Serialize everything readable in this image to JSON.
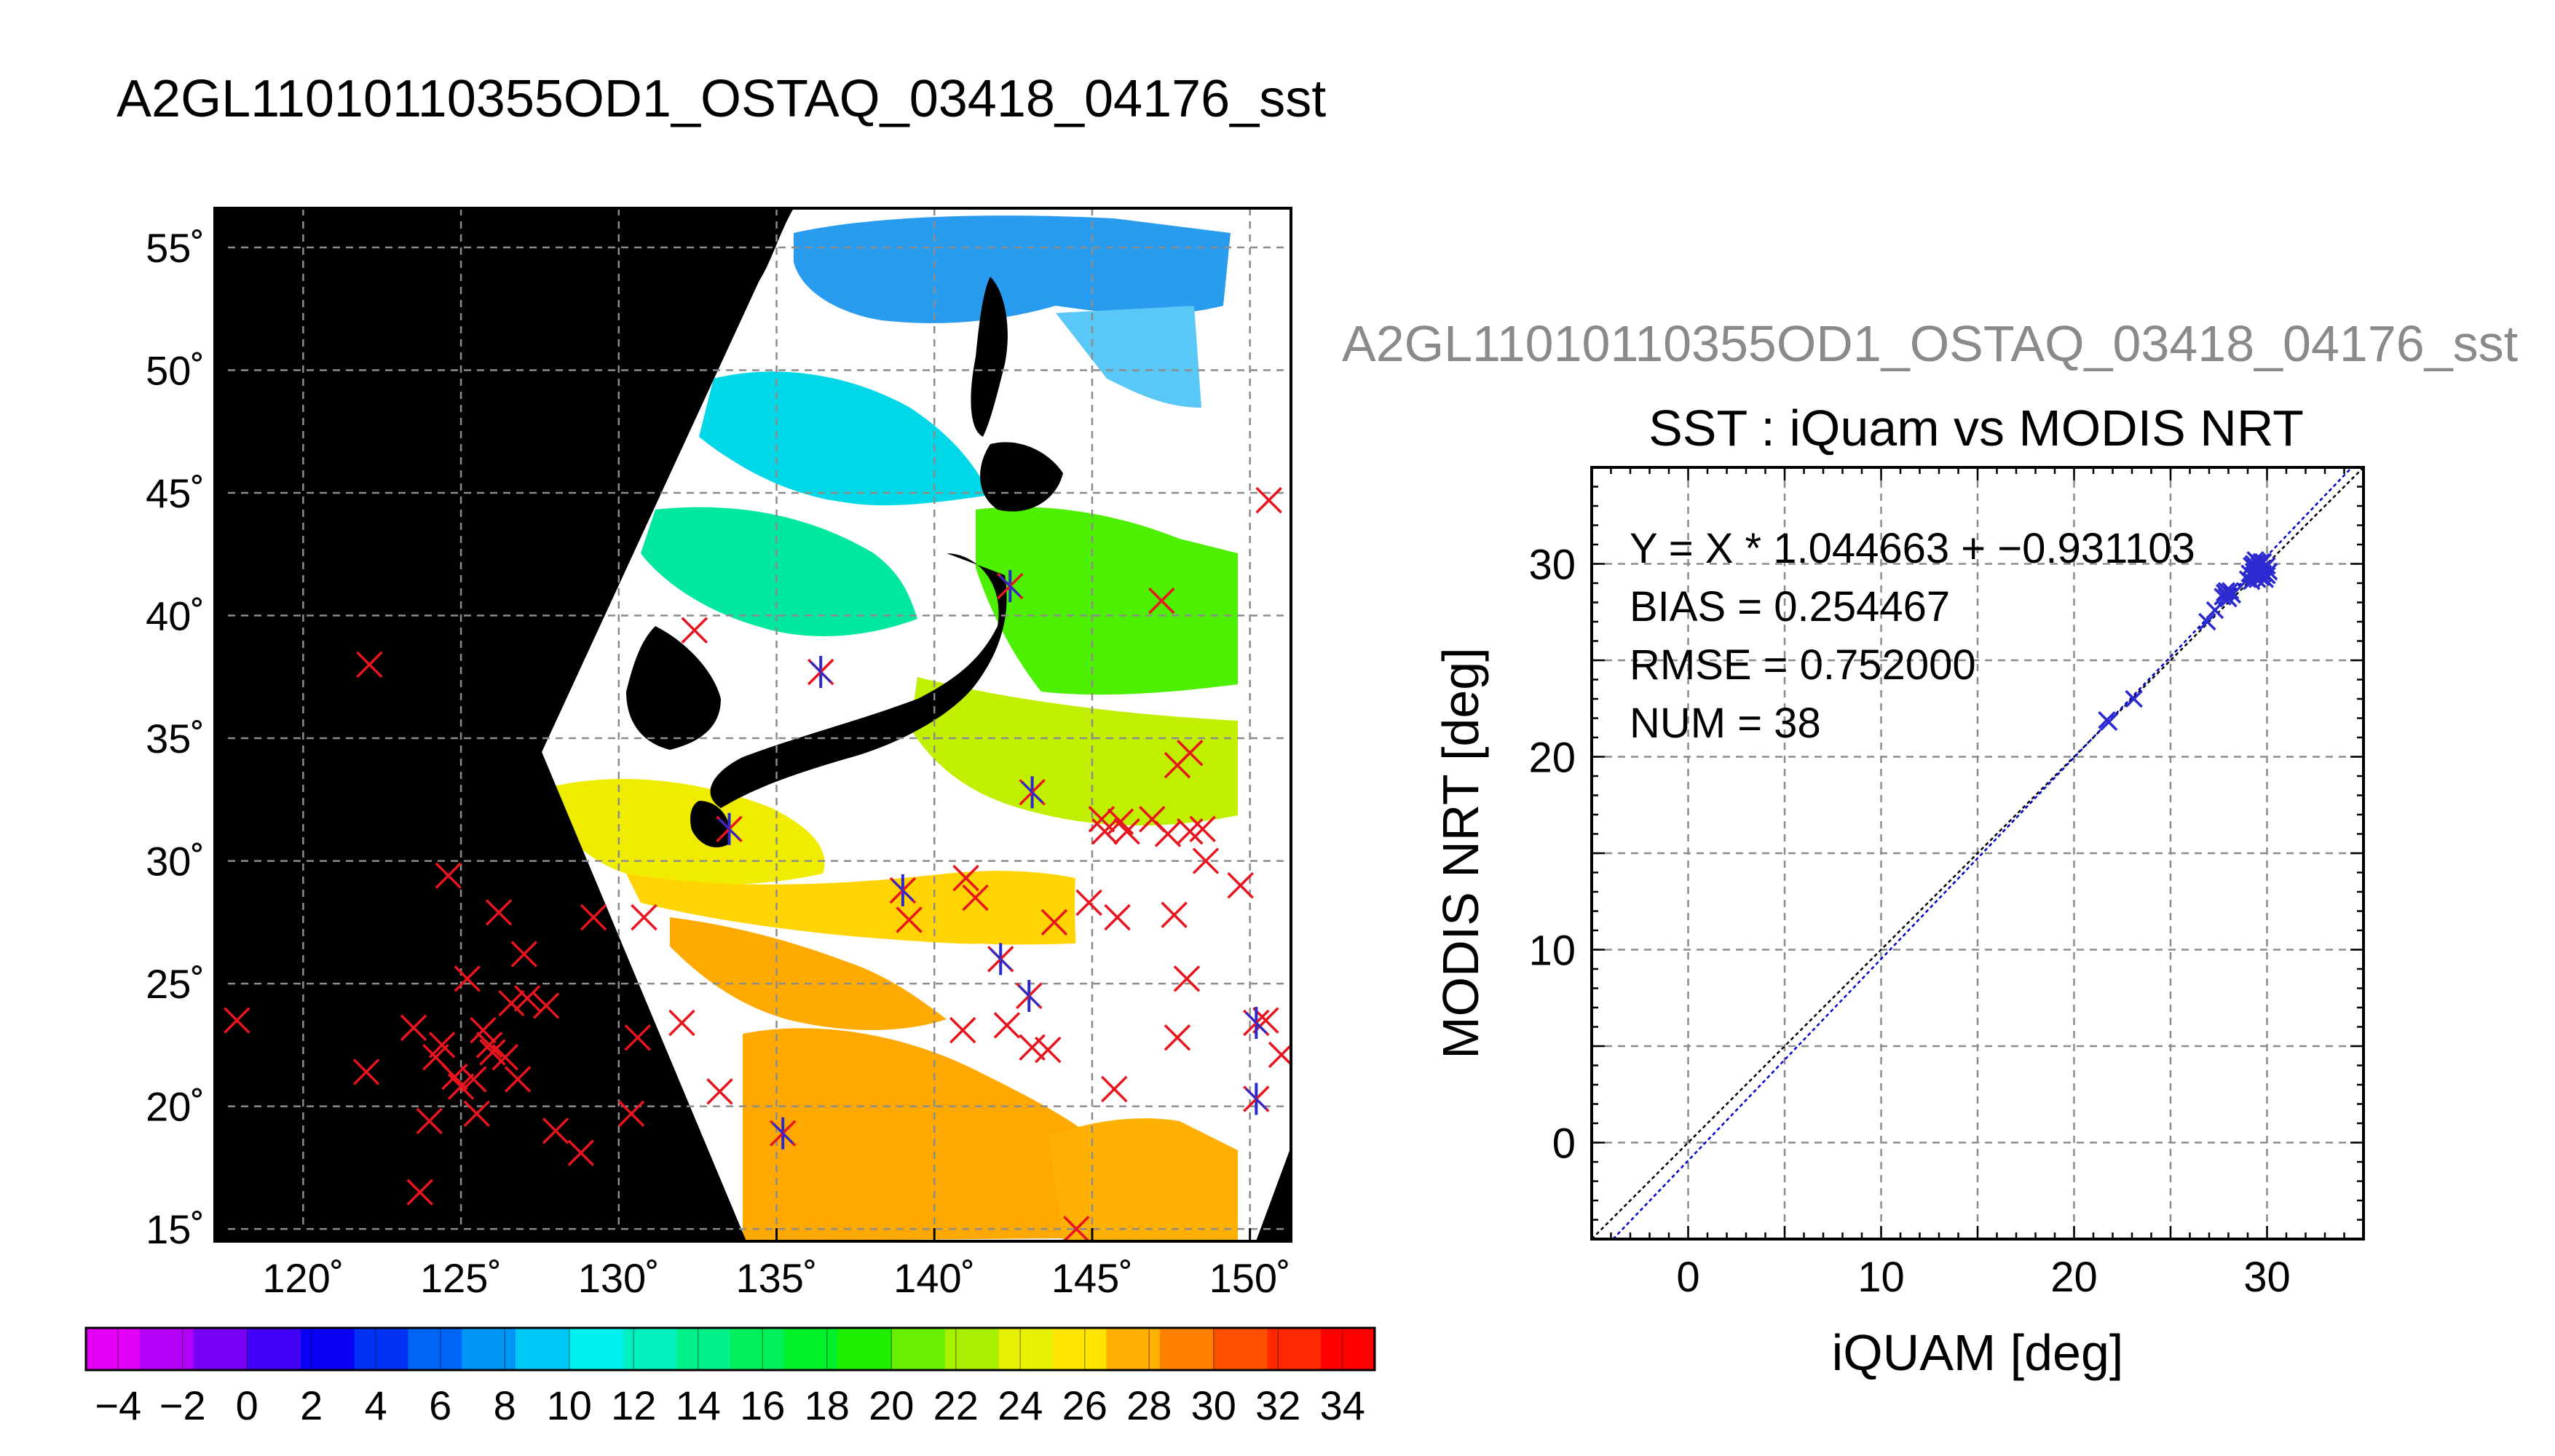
{
  "figure": {
    "main_title": "A2GL11010110355OD1_OSTAQ_03418_04176_sst",
    "scatter_suptitle": "A2GL11010110355OD1_OSTAQ_03418_04176_sst"
  },
  "colors": {
    "land": "#000000",
    "cloud": "#ffffff",
    "grid": "#8c8c8c",
    "marker_red": "#e8141e",
    "marker_blue": "#2a2ad0",
    "fit_line": "#0000cc",
    "identity_line": "#000000",
    "suptitle_gray": "#8a8a8a"
  },
  "chart_data": [
    {
      "type": "map",
      "lon_ticks": [
        120,
        125,
        130,
        135,
        140,
        145,
        150
      ],
      "lat_ticks": [
        15,
        20,
        25,
        30,
        35,
        40,
        45,
        50,
        55
      ],
      "lon_tick_labels": [
        "120˚",
        "125˚",
        "130˚",
        "135˚",
        "140˚",
        "145˚",
        "150˚"
      ],
      "lat_tick_labels": [
        "15˚",
        "20˚",
        "25˚",
        "30˚",
        "35˚",
        "40˚",
        "45˚",
        "50˚",
        "55˚"
      ],
      "xlim": [
        117.2,
        151.3
      ],
      "ylim": [
        14.5,
        56.6
      ],
      "grid": true,
      "red_markers": [
        [
          117.9,
          23.5
        ],
        [
          122.1,
          38.0
        ],
        [
          122.0,
          21.4
        ],
        [
          123.5,
          23.2
        ],
        [
          123.7,
          16.5
        ],
        [
          124.0,
          19.4
        ],
        [
          124.2,
          22.0
        ],
        [
          124.4,
          22.5
        ],
        [
          124.6,
          29.4
        ],
        [
          124.8,
          21.2
        ],
        [
          125.0,
          20.8
        ],
        [
          125.2,
          25.2
        ],
        [
          125.4,
          21.1
        ],
        [
          125.5,
          19.7
        ],
        [
          125.7,
          23.1
        ],
        [
          125.9,
          22.5
        ],
        [
          126.0,
          22.2
        ],
        [
          126.2,
          27.9
        ],
        [
          126.4,
          22.0
        ],
        [
          126.6,
          24.2
        ],
        [
          126.8,
          21.1
        ],
        [
          127.0,
          26.2
        ],
        [
          127.1,
          24.4
        ],
        [
          127.7,
          24.1
        ],
        [
          128.0,
          19.0
        ],
        [
          128.8,
          18.1
        ],
        [
          129.2,
          27.7
        ],
        [
          130.4,
          19.7
        ],
        [
          130.6,
          22.8
        ],
        [
          130.8,
          27.7
        ],
        [
          132.0,
          23.4
        ],
        [
          132.4,
          39.4
        ],
        [
          133.2,
          20.6
        ],
        [
          139.2,
          27.6
        ],
        [
          140.9,
          23.1
        ],
        [
          141.0,
          29.3
        ],
        [
          141.3,
          28.5
        ],
        [
          142.3,
          23.3
        ],
        [
          143.1,
          22.4
        ],
        [
          143.6,
          22.3
        ],
        [
          143.8,
          27.5
        ],
        [
          144.5,
          15.0
        ],
        [
          144.9,
          28.3
        ],
        [
          145.3,
          31.7
        ],
        [
          145.4,
          31.2
        ],
        [
          145.7,
          20.7
        ],
        [
          145.8,
          27.7
        ],
        [
          145.9,
          31.6
        ],
        [
          146.1,
          31.2
        ],
        [
          146.9,
          31.7
        ],
        [
          147.2,
          40.6
        ],
        [
          147.4,
          31.1
        ],
        [
          147.6,
          27.8
        ],
        [
          147.7,
          22.8
        ],
        [
          147.7,
          33.9
        ],
        [
          148.0,
          25.2
        ],
        [
          148.1,
          34.4
        ],
        [
          148.1,
          31.2
        ],
        [
          148.5,
          31.3
        ],
        [
          148.6,
          30.0
        ],
        [
          149.7,
          29.0
        ],
        [
          150.5,
          23.5
        ],
        [
          150.6,
          44.7
        ],
        [
          151.0,
          22.1
        ]
      ],
      "matched_markers": [
        [
          142.4,
          41.2
        ],
        [
          136.4,
          37.7
        ],
        [
          133.5,
          31.3
        ],
        [
          143.1,
          32.8
        ],
        [
          139.0,
          28.8
        ],
        [
          142.1,
          26.0
        ],
        [
          143.0,
          24.5
        ],
        [
          135.2,
          18.9
        ],
        [
          150.2,
          23.4
        ],
        [
          150.2,
          20.3
        ]
      ]
    },
    {
      "type": "colorbar",
      "vmin": -5,
      "vmax": 35,
      "bins": 20,
      "tick_labels": [
        "−4",
        "−2",
        "0",
        "2",
        "4",
        "6",
        "8",
        "10",
        "12",
        "14",
        "16",
        "18",
        "20",
        "22",
        "24",
        "26",
        "28",
        "30",
        "32",
        "34"
      ],
      "colors": [
        "#e400f6",
        "#b400f6",
        "#7a00f6",
        "#4200f6",
        "#0a00f6",
        "#0032f6",
        "#0064f6",
        "#0096f6",
        "#00c8f6",
        "#00f0f0",
        "#00f0c0",
        "#00f08a",
        "#00f05a",
        "#00f02a",
        "#20f000",
        "#68f000",
        "#a8f000",
        "#e6f000",
        "#ffe400",
        "#ffb000",
        "#ff8000",
        "#ff5000",
        "#ff2800",
        "#ff0000"
      ]
    },
    {
      "type": "scatter",
      "title": "SST : iQuam vs MODIS NRT",
      "xlabel": "iQUAM [deg]",
      "ylabel": "MODIS NRT [deg]",
      "xlim": [
        -5,
        35
      ],
      "ylim": [
        -5,
        35
      ],
      "x_ticks": [
        0,
        10,
        20,
        30
      ],
      "y_ticks": [
        0,
        10,
        20,
        30
      ],
      "grid": true,
      "annotations": [
        "Y = X * 1.044663 + −0.931103",
        "BIAS = 0.254467",
        "RMSE = 0.752000",
        "NUM = 38"
      ],
      "fit": {
        "slope": 1.044663,
        "intercept": -0.931103
      },
      "points": [
        {
          "x": 21.7,
          "y": 21.9
        },
        {
          "x": 21.8,
          "y": 21.8
        },
        {
          "x": 23.1,
          "y": 23.0
        },
        {
          "x": 26.9,
          "y": 27.0
        },
        {
          "x": 27.3,
          "y": 27.6
        },
        {
          "x": 27.7,
          "y": 28.3
        },
        {
          "x": 27.8,
          "y": 28.5
        },
        {
          "x": 27.9,
          "y": 28.3
        },
        {
          "x": 28.0,
          "y": 28.2
        },
        {
          "x": 28.1,
          "y": 28.6
        },
        {
          "x": 29.0,
          "y": 29.2
        },
        {
          "x": 29.1,
          "y": 29.5
        },
        {
          "x": 29.2,
          "y": 29.9
        },
        {
          "x": 29.3,
          "y": 29.6
        },
        {
          "x": 29.3,
          "y": 30.0
        },
        {
          "x": 29.4,
          "y": 29.3
        },
        {
          "x": 29.4,
          "y": 29.8
        },
        {
          "x": 29.5,
          "y": 30.1
        },
        {
          "x": 29.5,
          "y": 29.6
        },
        {
          "x": 29.6,
          "y": 29.4
        },
        {
          "x": 29.6,
          "y": 30.0
        },
        {
          "x": 29.7,
          "y": 29.7
        },
        {
          "x": 29.7,
          "y": 29.3
        },
        {
          "x": 29.8,
          "y": 29.5
        },
        {
          "x": 29.8,
          "y": 30.1
        },
        {
          "x": 29.9,
          "y": 29.8
        },
        {
          "x": 30.0,
          "y": 29.4
        },
        {
          "x": 30.1,
          "y": 29.6
        },
        {
          "x": 29.2,
          "y": 29.1
        },
        {
          "x": 29.4,
          "y": 30.2
        },
        {
          "x": 29.6,
          "y": 29.9
        },
        {
          "x": 29.9,
          "y": 29.2
        },
        {
          "x": 28.2,
          "y": 28.4
        },
        {
          "x": 27.9,
          "y": 28.6
        },
        {
          "x": 29.3,
          "y": 29.4
        },
        {
          "x": 29.7,
          "y": 30.1
        },
        {
          "x": 30.0,
          "y": 29.9
        },
        {
          "x": 29.5,
          "y": 29.2
        }
      ]
    }
  ]
}
